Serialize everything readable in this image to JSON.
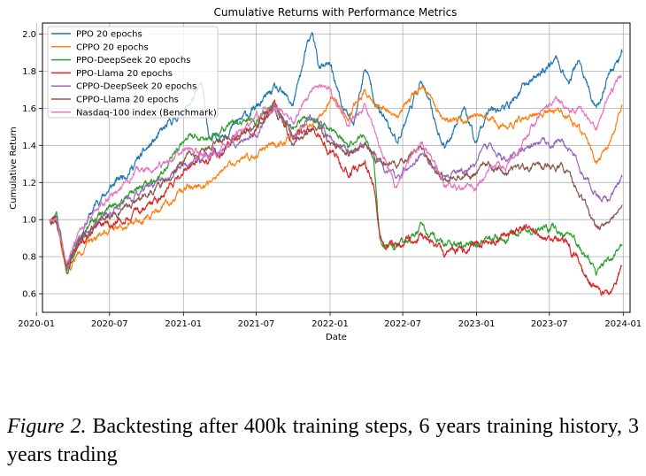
{
  "chart_data": {
    "type": "line",
    "title": "Cumulative Returns with Performance Metrics",
    "xlabel": "Date",
    "ylabel": "Cumulative Return",
    "xlim": [
      "2020-01-16",
      "2024-01-18"
    ],
    "ylim": [
      0.5,
      2.06
    ],
    "x_ticks": [
      {
        "date": "2020-01-01",
        "label": "2020-01"
      },
      {
        "date": "2020-07-01",
        "label": "2020-07"
      },
      {
        "date": "2021-01-01",
        "label": "2021-01"
      },
      {
        "date": "2021-07-01",
        "label": "2021-07"
      },
      {
        "date": "2022-01-01",
        "label": "2022-01"
      },
      {
        "date": "2022-07-01",
        "label": "2022-07"
      },
      {
        "date": "2023-01-01",
        "label": "2023-01"
      },
      {
        "date": "2023-07-01",
        "label": "2023-07"
      },
      {
        "date": "2024-01-01",
        "label": "2024-01"
      }
    ],
    "y_ticks": [
      {
        "value": 0.6,
        "label": "0.6"
      },
      {
        "value": 0.8,
        "label": "0.8"
      },
      {
        "value": 1.0,
        "label": "1.0"
      },
      {
        "value": 1.2,
        "label": "1.2"
      },
      {
        "value": 1.4,
        "label": "1.4"
      },
      {
        "value": 1.6,
        "label": "1.6"
      },
      {
        "value": 1.8,
        "label": "1.8"
      },
      {
        "value": 2.0,
        "label": "2.0"
      }
    ],
    "grid": true,
    "legend_position": "upper-left",
    "series": [
      {
        "name": "PPO 20 epochs",
        "color": "#1f77b4",
        "seed": 11,
        "noise": 0.016,
        "points": [
          [
            "2020-02-03",
            1.0
          ],
          [
            "2020-02-20",
            1.03
          ],
          [
            "2020-03-16",
            0.74
          ],
          [
            "2020-04-15",
            0.9
          ],
          [
            "2020-06-01",
            1.1
          ],
          [
            "2020-09-01",
            1.3
          ],
          [
            "2020-11-01",
            1.45
          ],
          [
            "2021-01-15",
            1.62
          ],
          [
            "2021-02-15",
            1.72
          ],
          [
            "2021-03-08",
            1.42
          ],
          [
            "2021-05-01",
            1.5
          ],
          [
            "2021-07-01",
            1.6
          ],
          [
            "2021-08-15",
            1.7
          ],
          [
            "2021-10-01",
            1.62
          ],
          [
            "2021-11-01",
            1.9
          ],
          [
            "2021-11-19",
            2.0
          ],
          [
            "2021-12-05",
            1.82
          ],
          [
            "2022-01-04",
            1.82
          ],
          [
            "2022-02-01",
            1.6
          ],
          [
            "2022-03-01",
            1.52
          ],
          [
            "2022-03-29",
            1.82
          ],
          [
            "2022-05-01",
            1.6
          ],
          [
            "2022-06-16",
            1.42
          ],
          [
            "2022-08-15",
            1.75
          ],
          [
            "2022-10-13",
            1.38
          ],
          [
            "2022-11-30",
            1.62
          ],
          [
            "2022-12-28",
            1.4
          ],
          [
            "2023-02-01",
            1.62
          ],
          [
            "2023-03-15",
            1.6
          ],
          [
            "2023-05-01",
            1.72
          ],
          [
            "2023-07-18",
            1.87
          ],
          [
            "2023-08-20",
            1.74
          ],
          [
            "2023-09-10",
            1.86
          ],
          [
            "2023-10-26",
            1.58
          ],
          [
            "2023-11-28",
            1.8
          ],
          [
            "2023-12-29",
            1.9
          ]
        ]
      },
      {
        "name": "CPPO 20 epochs",
        "color": "#ff7f0e",
        "seed": 22,
        "noise": 0.014,
        "points": [
          [
            "2020-02-03",
            1.0
          ],
          [
            "2020-02-20",
            0.98
          ],
          [
            "2020-03-16",
            0.7
          ],
          [
            "2020-04-15",
            0.82
          ],
          [
            "2020-06-01",
            0.92
          ],
          [
            "2020-09-01",
            1.0
          ],
          [
            "2020-11-01",
            1.05
          ],
          [
            "2021-01-15",
            1.18
          ],
          [
            "2021-03-08",
            1.2
          ],
          [
            "2021-05-01",
            1.3
          ],
          [
            "2021-07-01",
            1.35
          ],
          [
            "2021-09-01",
            1.42
          ],
          [
            "2021-11-19",
            1.5
          ],
          [
            "2022-01-04",
            1.66
          ],
          [
            "2022-02-15",
            1.55
          ],
          [
            "2022-03-29",
            1.7
          ],
          [
            "2022-05-01",
            1.62
          ],
          [
            "2022-06-16",
            1.56
          ],
          [
            "2022-08-15",
            1.72
          ],
          [
            "2022-10-13",
            1.54
          ],
          [
            "2022-12-28",
            1.55
          ],
          [
            "2023-02-01",
            1.55
          ],
          [
            "2023-03-15",
            1.5
          ],
          [
            "2023-05-01",
            1.55
          ],
          [
            "2023-07-18",
            1.6
          ],
          [
            "2023-08-20",
            1.55
          ],
          [
            "2023-09-10",
            1.5
          ],
          [
            "2023-10-26",
            1.3
          ],
          [
            "2023-11-28",
            1.42
          ],
          [
            "2023-12-29",
            1.62
          ]
        ]
      },
      {
        "name": "PPO-DeepSeek 20 epochs",
        "color": "#2ca02c",
        "seed": 33,
        "noise": 0.015,
        "points": [
          [
            "2020-02-03",
            1.0
          ],
          [
            "2020-02-20",
            1.02
          ],
          [
            "2020-03-16",
            0.73
          ],
          [
            "2020-04-15",
            0.9
          ],
          [
            "2020-06-01",
            1.02
          ],
          [
            "2020-09-01",
            1.15
          ],
          [
            "2020-11-01",
            1.25
          ],
          [
            "2021-01-15",
            1.45
          ],
          [
            "2021-03-08",
            1.42
          ],
          [
            "2021-05-01",
            1.5
          ],
          [
            "2021-07-01",
            1.55
          ],
          [
            "2021-08-15",
            1.6
          ],
          [
            "2021-10-01",
            1.5
          ],
          [
            "2021-11-19",
            1.55
          ],
          [
            "2022-01-04",
            1.48
          ],
          [
            "2022-02-15",
            1.4
          ],
          [
            "2022-03-29",
            1.46
          ],
          [
            "2022-04-20",
            1.3
          ],
          [
            "2022-05-05",
            0.88
          ],
          [
            "2022-06-16",
            0.84
          ],
          [
            "2022-08-15",
            0.96
          ],
          [
            "2022-10-13",
            0.85
          ],
          [
            "2022-12-28",
            0.88
          ],
          [
            "2023-02-01",
            0.92
          ],
          [
            "2023-03-15",
            0.9
          ],
          [
            "2023-05-01",
            0.95
          ],
          [
            "2023-07-18",
            0.95
          ],
          [
            "2023-08-20",
            0.92
          ],
          [
            "2023-09-10",
            0.88
          ],
          [
            "2023-10-26",
            0.72
          ],
          [
            "2023-11-28",
            0.78
          ],
          [
            "2023-12-29",
            0.86
          ]
        ]
      },
      {
        "name": "PPO-Llama 20 epochs",
        "color": "#d62728",
        "seed": 44,
        "noise": 0.016,
        "points": [
          [
            "2020-02-03",
            1.0
          ],
          [
            "2020-02-20",
            0.99
          ],
          [
            "2020-03-16",
            0.76
          ],
          [
            "2020-04-15",
            0.86
          ],
          [
            "2020-06-01",
            0.95
          ],
          [
            "2020-09-01",
            1.02
          ],
          [
            "2020-11-01",
            1.12
          ],
          [
            "2021-01-15",
            1.3
          ],
          [
            "2021-03-08",
            1.3
          ],
          [
            "2021-05-01",
            1.42
          ],
          [
            "2021-07-01",
            1.5
          ],
          [
            "2021-08-15",
            1.62
          ],
          [
            "2021-10-01",
            1.45
          ],
          [
            "2021-11-19",
            1.48
          ],
          [
            "2022-01-04",
            1.35
          ],
          [
            "2022-02-15",
            1.25
          ],
          [
            "2022-03-29",
            1.3
          ],
          [
            "2022-04-20",
            1.18
          ],
          [
            "2022-05-05",
            0.9
          ],
          [
            "2022-06-16",
            0.85
          ],
          [
            "2022-08-15",
            0.92
          ],
          [
            "2022-10-13",
            0.82
          ],
          [
            "2022-12-28",
            0.85
          ],
          [
            "2023-02-01",
            0.9
          ],
          [
            "2023-03-15",
            0.9
          ],
          [
            "2023-05-01",
            0.95
          ],
          [
            "2023-07-18",
            0.9
          ],
          [
            "2023-08-20",
            0.85
          ],
          [
            "2023-09-10",
            0.78
          ],
          [
            "2023-10-26",
            0.62
          ],
          [
            "2023-11-28",
            0.6
          ],
          [
            "2023-12-29",
            0.75
          ]
        ]
      },
      {
        "name": "CPPO-DeepSeek 20 epochs",
        "color": "#9467bd",
        "seed": 55,
        "noise": 0.014,
        "points": [
          [
            "2020-02-03",
            1.0
          ],
          [
            "2020-02-20",
            1.01
          ],
          [
            "2020-03-16",
            0.74
          ],
          [
            "2020-04-15",
            0.9
          ],
          [
            "2020-06-01",
            1.0
          ],
          [
            "2020-09-01",
            1.12
          ],
          [
            "2020-11-01",
            1.2
          ],
          [
            "2021-01-15",
            1.32
          ],
          [
            "2021-03-08",
            1.35
          ],
          [
            "2021-05-01",
            1.42
          ],
          [
            "2021-07-01",
            1.45
          ],
          [
            "2021-08-15",
            1.62
          ],
          [
            "2021-10-01",
            1.45
          ],
          [
            "2021-11-19",
            1.55
          ],
          [
            "2022-01-04",
            1.45
          ],
          [
            "2022-02-15",
            1.35
          ],
          [
            "2022-03-29",
            1.42
          ],
          [
            "2022-05-05",
            1.3
          ],
          [
            "2022-06-16",
            1.22
          ],
          [
            "2022-08-15",
            1.35
          ],
          [
            "2022-10-13",
            1.22
          ],
          [
            "2022-12-28",
            1.3
          ],
          [
            "2023-02-01",
            1.38
          ],
          [
            "2023-03-15",
            1.32
          ],
          [
            "2023-05-01",
            1.38
          ],
          [
            "2023-07-18",
            1.42
          ],
          [
            "2023-08-20",
            1.38
          ],
          [
            "2023-09-10",
            1.32
          ],
          [
            "2023-10-26",
            1.12
          ],
          [
            "2023-11-28",
            1.12
          ],
          [
            "2023-12-29",
            1.23
          ]
        ]
      },
      {
        "name": "CPPO-Llama 20 epochs",
        "color": "#8c564b",
        "seed": 66,
        "noise": 0.014,
        "points": [
          [
            "2020-02-03",
            1.0
          ],
          [
            "2020-02-20",
            1.0
          ],
          [
            "2020-03-16",
            0.75
          ],
          [
            "2020-04-15",
            0.88
          ],
          [
            "2020-06-01",
            0.98
          ],
          [
            "2020-09-01",
            1.1
          ],
          [
            "2020-11-01",
            1.18
          ],
          [
            "2021-01-15",
            1.35
          ],
          [
            "2021-03-08",
            1.38
          ],
          [
            "2021-05-01",
            1.45
          ],
          [
            "2021-07-01",
            1.5
          ],
          [
            "2021-08-15",
            1.6
          ],
          [
            "2021-10-01",
            1.42
          ],
          [
            "2021-11-19",
            1.5
          ],
          [
            "2022-01-04",
            1.42
          ],
          [
            "2022-02-15",
            1.35
          ],
          [
            "2022-03-29",
            1.4
          ],
          [
            "2022-05-05",
            1.3
          ],
          [
            "2022-06-16",
            1.32
          ],
          [
            "2022-08-15",
            1.38
          ],
          [
            "2022-10-13",
            1.22
          ],
          [
            "2022-12-28",
            1.25
          ],
          [
            "2023-02-01",
            1.3
          ],
          [
            "2023-03-15",
            1.25
          ],
          [
            "2023-05-01",
            1.28
          ],
          [
            "2023-07-18",
            1.3
          ],
          [
            "2023-08-20",
            1.25
          ],
          [
            "2023-09-10",
            1.15
          ],
          [
            "2023-10-26",
            0.95
          ],
          [
            "2023-11-28",
            0.98
          ],
          [
            "2023-12-29",
            1.08
          ]
        ]
      },
      {
        "name": "Nasdaq-100 index (Benchmark)",
        "color": "#e377c2",
        "seed": 77,
        "noise": 0.014,
        "points": [
          [
            "2020-02-03",
            1.0
          ],
          [
            "2020-02-20",
            1.01
          ],
          [
            "2020-03-16",
            0.75
          ],
          [
            "2020-04-15",
            0.92
          ],
          [
            "2020-06-01",
            1.05
          ],
          [
            "2020-09-01",
            1.25
          ],
          [
            "2020-11-01",
            1.28
          ],
          [
            "2021-01-15",
            1.38
          ],
          [
            "2021-03-08",
            1.33
          ],
          [
            "2021-05-01",
            1.42
          ],
          [
            "2021-07-01",
            1.55
          ],
          [
            "2021-08-15",
            1.6
          ],
          [
            "2021-10-01",
            1.52
          ],
          [
            "2021-11-19",
            1.7
          ],
          [
            "2021-12-27",
            1.72
          ],
          [
            "2022-02-15",
            1.52
          ],
          [
            "2022-03-29",
            1.6
          ],
          [
            "2022-05-05",
            1.38
          ],
          [
            "2022-06-16",
            1.18
          ],
          [
            "2022-08-15",
            1.42
          ],
          [
            "2022-10-13",
            1.2
          ],
          [
            "2022-12-28",
            1.15
          ],
          [
            "2023-02-01",
            1.3
          ],
          [
            "2023-03-15",
            1.28
          ],
          [
            "2023-05-01",
            1.45
          ],
          [
            "2023-07-18",
            1.68
          ],
          [
            "2023-08-20",
            1.58
          ],
          [
            "2023-09-10",
            1.62
          ],
          [
            "2023-10-26",
            1.48
          ],
          [
            "2023-11-28",
            1.68
          ],
          [
            "2023-12-29",
            1.77
          ]
        ]
      }
    ]
  },
  "caption": {
    "label": "Figure 2.",
    "text": " Backtesting after 400k training steps, 6 years training history, 3 years trading"
  }
}
